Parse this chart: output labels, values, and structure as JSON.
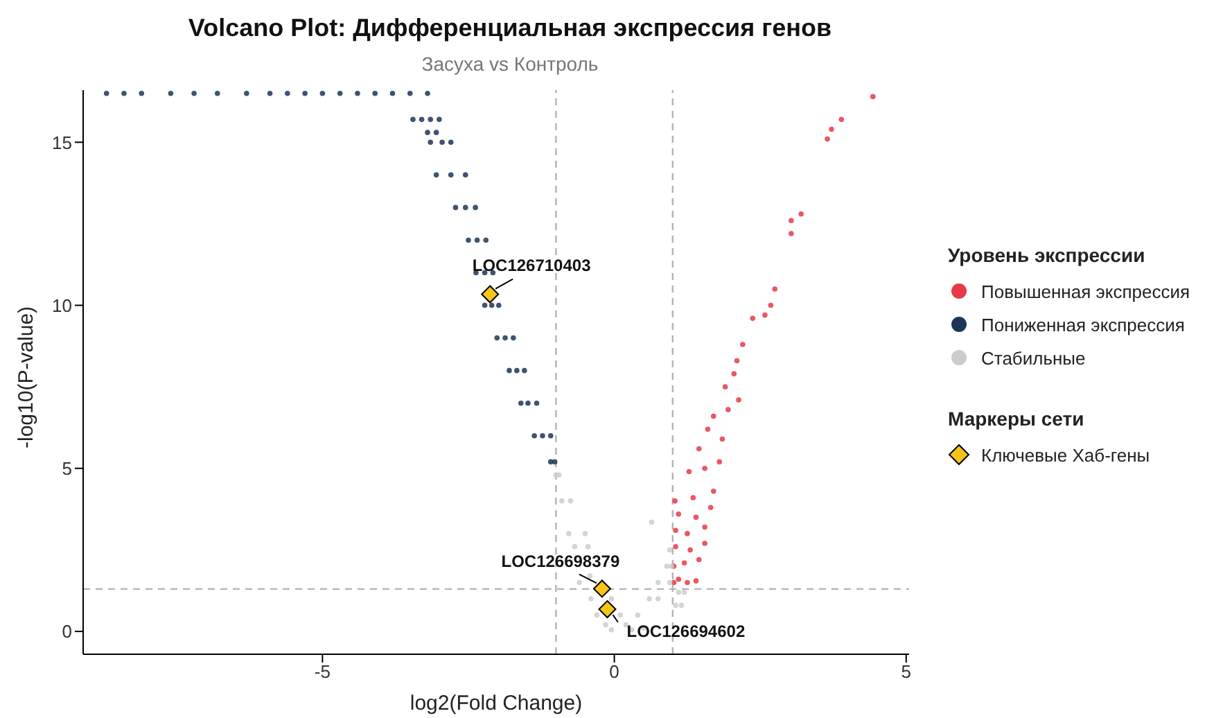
{
  "chart_data": {
    "type": "scatter",
    "title": "Volcano Plot: Дифференциальная экспрессия генов",
    "subtitle": "Засуха vs Контроль",
    "xlabel": "log2(Fold Change)",
    "ylabel": "-log10(P-value)",
    "legend_title": "Уровень экспрессии",
    "xlim": [
      -9.1,
      5.05
    ],
    "ylim": [
      -0.7,
      16.6
    ],
    "xticks": [
      -5,
      0,
      5
    ],
    "yticks": [
      0,
      5,
      10,
      15
    ],
    "grid": false,
    "legend": "right",
    "marker": "circle",
    "ref_lines": [
      {
        "axis": "x",
        "value": -1,
        "color": "#b3b3b3",
        "line_style": "dashed"
      },
      {
        "axis": "x",
        "value": 1,
        "color": "#b3b3b3",
        "line_style": "dashed"
      },
      {
        "axis": "y",
        "value": 1.3,
        "color": "#b3b3b3",
        "line_style": "dashed"
      }
    ],
    "annotations": [
      "Маркеры сети",
      {
        "text": "LOC126710403",
        "x": -2.13,
        "y": 10.34
      },
      {
        "text": "LOC126698379",
        "x": -0.21,
        "y": 1.31
      },
      {
        "text": "LOC126694602",
        "x": -0.12,
        "y": 0.68
      }
    ],
    "series": [
      {
        "name": "Повышенная экспрессия",
        "color": "#e63946",
        "x": [
          1.02,
          1.1,
          1.25,
          1.4,
          1.02,
          1.2,
          1.45,
          1.05,
          1.3,
          1.55,
          1.05,
          1.25,
          1.55,
          1.1,
          1.4,
          1.65,
          1.04,
          1.35,
          1.7,
          1.28,
          1.55,
          1.8,
          1.45,
          1.85,
          1.6,
          1.7,
          1.95,
          2.13,
          1.9,
          2.05,
          2.1,
          2.2,
          2.37,
          2.58,
          2.68,
          2.75,
          3.03,
          3.03,
          3.2,
          3.65,
          3.72,
          3.89,
          4.43
        ],
        "values": [
          1.5,
          1.6,
          1.5,
          1.55,
          2.0,
          2.1,
          2.2,
          2.6,
          2.5,
          2.7,
          3.1,
          3.0,
          3.2,
          3.6,
          3.5,
          3.8,
          4.0,
          4.1,
          4.3,
          4.9,
          5.0,
          5.2,
          5.6,
          5.9,
          6.2,
          6.6,
          6.8,
          7.1,
          7.5,
          7.9,
          8.3,
          8.8,
          9.6,
          9.7,
          10.0,
          10.5,
          12.2,
          12.6,
          12.8,
          15.1,
          15.4,
          15.7,
          16.4
        ]
      },
      {
        "name": "Пониженная экспрессия",
        "color": "#1d3557",
        "x": [
          -8.7,
          -8.4,
          -8.1,
          -7.6,
          -7.2,
          -6.8,
          -6.3,
          -5.9,
          -5.6,
          -5.3,
          -5.0,
          -4.7,
          -4.4,
          -4.1,
          -3.8,
          -3.5,
          -3.2,
          -3.45,
          -3.3,
          -3.15,
          -3.0,
          -3.2,
          -3.05,
          -3.15,
          -2.95,
          -2.8,
          -3.05,
          -2.8,
          -2.55,
          -2.72,
          -2.55,
          -2.38,
          -2.5,
          -2.35,
          -2.2,
          -2.37,
          -2.22,
          -2.08,
          -2.22,
          -2.1,
          -1.98,
          -2.01,
          -1.87,
          -1.73,
          -1.8,
          -1.67,
          -1.54,
          -1.6,
          -1.48,
          -1.33,
          -1.37,
          -1.23,
          -1.09,
          -1.09,
          -1.02
        ],
        "values": [
          16.5,
          16.5,
          16.5,
          16.5,
          16.5,
          16.5,
          16.5,
          16.5,
          16.5,
          16.5,
          16.5,
          16.5,
          16.5,
          16.5,
          16.5,
          16.5,
          16.5,
          15.7,
          15.7,
          15.7,
          15.7,
          15.3,
          15.3,
          15.0,
          15.0,
          15.0,
          14.0,
          14.0,
          14.0,
          13.0,
          13.0,
          13.0,
          12.0,
          12.0,
          12.0,
          11.0,
          11.0,
          11.0,
          10.0,
          10.0,
          10.0,
          9.0,
          9.0,
          9.0,
          8.0,
          8.0,
          8.0,
          7.0,
          7.0,
          7.0,
          6.0,
          6.0,
          6.0,
          5.2,
          5.2
        ]
      },
      {
        "name": "Стабильные",
        "color": "#cccccc",
        "x": [
          -1.0,
          -0.95,
          -0.9,
          -0.75,
          -0.78,
          -0.5,
          -0.68,
          -0.45,
          -0.6,
          -0.42,
          -0.4,
          -0.05,
          -0.3,
          0.1,
          -0.15,
          0.2,
          -0.05,
          0.3,
          0.4,
          0.5,
          0.6,
          0.75,
          0.75,
          0.95,
          0.9,
          0.98,
          0.95,
          1.1,
          1.2,
          1.05,
          1.15,
          0.64
        ],
        "values": [
          4.8,
          4.8,
          4.0,
          4.0,
          3.0,
          3.0,
          2.6,
          2.6,
          1.5,
          1.7,
          1.0,
          1.0,
          0.5,
          0.5,
          0.2,
          0.2,
          0.05,
          0.05,
          0.5,
          0.1,
          1.0,
          1.0,
          1.5,
          1.5,
          2.0,
          2.0,
          2.5,
          1.2,
          1.2,
          0.8,
          0.8,
          3.35
        ]
      },
      {
        "name": "Ключевые Хаб-гены",
        "color": "#f5c518",
        "marker": "diamond",
        "x": [
          -2.13,
          -0.21,
          -0.12
        ],
        "values": [
          10.34,
          1.31,
          0.68
        ]
      }
    ]
  }
}
